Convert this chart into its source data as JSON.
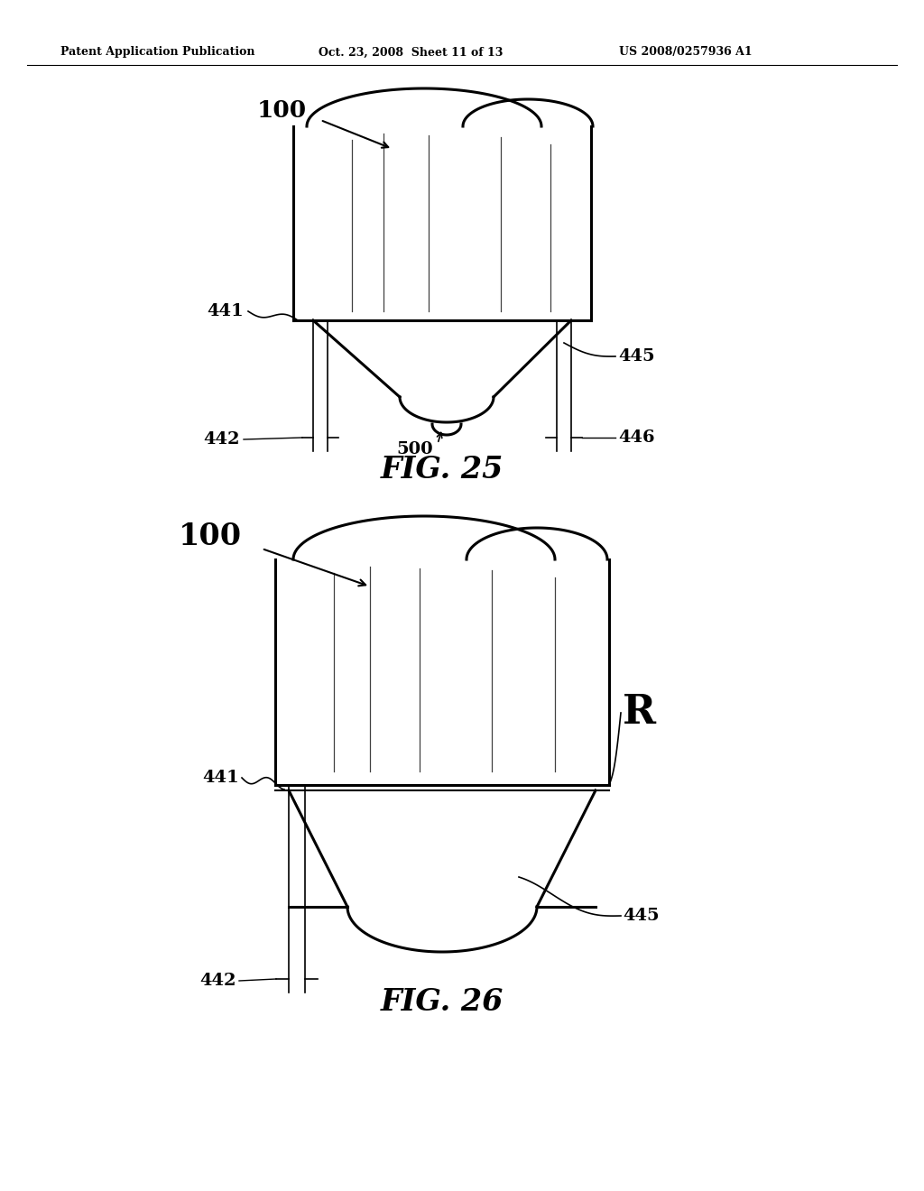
{
  "header_left": "Patent Application Publication",
  "header_center": "Oct. 23, 2008  Sheet 11 of 13",
  "header_right": "US 2008/0257936 A1",
  "fig25_title": "FIG. 25",
  "fig26_title": "FIG. 26",
  "bg_color": "#ffffff",
  "line_color": "#000000"
}
